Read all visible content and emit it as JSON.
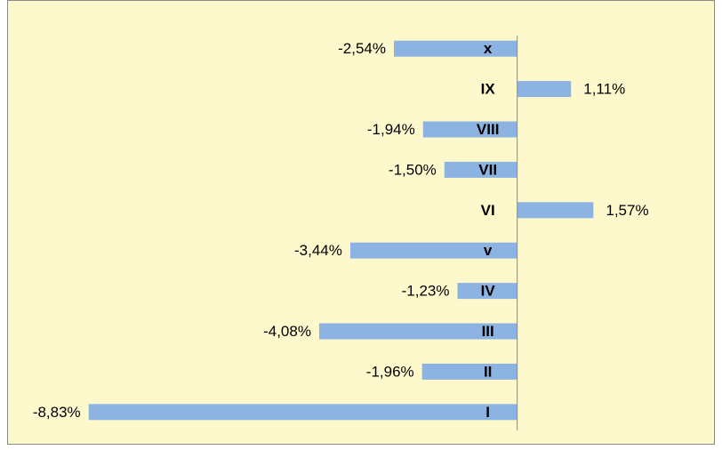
{
  "chart_data": {
    "type": "barh",
    "categories": [
      "I",
      "II",
      "III",
      "IV",
      "v",
      "VI",
      "VII",
      "VIII",
      "IX",
      "x"
    ],
    "values": [
      -8.83,
      -1.96,
      -4.08,
      -1.23,
      -3.44,
      1.57,
      -1.5,
      -1.94,
      1.11,
      -2.54
    ],
    "value_labels": [
      "-8,83%",
      "-1,96%",
      "-4,08%",
      "-1,23%",
      "-3,44%",
      "1,57%",
      "-1,50%",
      "-1,94%",
      "1,11%",
      "-2,54%"
    ],
    "color": "#8db3e2",
    "xlim": [
      -10.4,
      4
    ],
    "grid": false
  }
}
